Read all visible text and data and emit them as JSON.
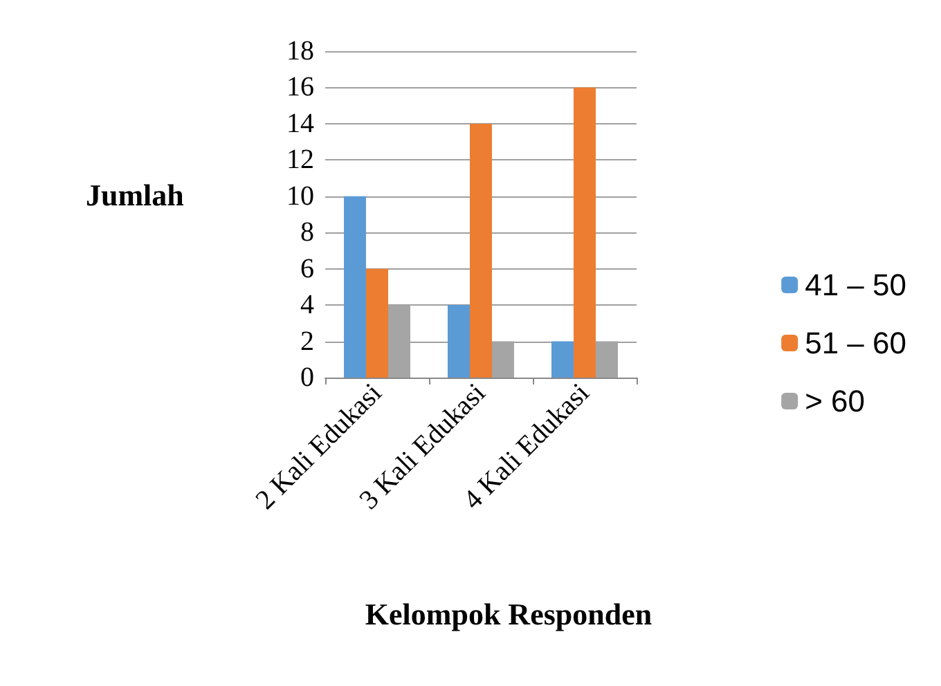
{
  "chart_data": {
    "type": "bar",
    "xlabel": "Kelompok Responden",
    "ylabel": "Jumlah",
    "categories": [
      "2 Kali Edukasi",
      "3 Kali Edukasi",
      "4 Kali Edukasi"
    ],
    "series": [
      {
        "name": "41 – 50",
        "color": "#5b9bd5",
        "values": [
          10,
          4,
          2
        ]
      },
      {
        "name": "51 – 60",
        "color": "#ed7d31",
        "values": [
          6,
          14,
          16
        ]
      },
      {
        "name": "> 60",
        "color": "#a5a5a5",
        "values": [
          4,
          2,
          2
        ]
      }
    ],
    "ylim": [
      0,
      18
    ],
    "yticks": [
      0,
      2,
      4,
      6,
      8,
      10,
      12,
      14,
      16,
      18
    ],
    "grid": "y",
    "legend": "right"
  }
}
